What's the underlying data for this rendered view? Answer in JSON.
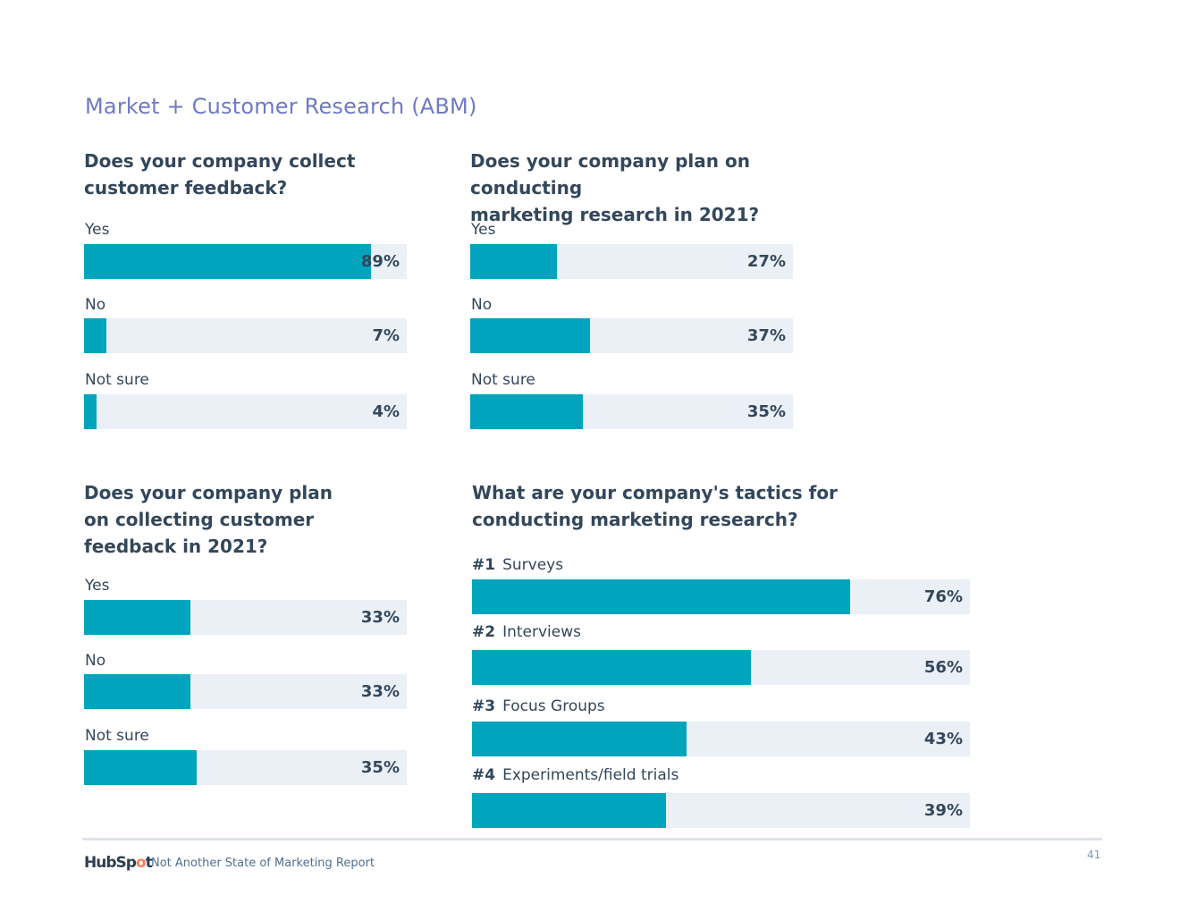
{
  "page": {
    "title": "Market + Customer Research (ABM)",
    "number": "41"
  },
  "footer": {
    "logo": {
      "text_a": "HubSp",
      "text_b": "o",
      "text_c": "t"
    },
    "report_name": "Not Another State of Marketing Report"
  },
  "colors": {
    "fill": "#00a4bd",
    "track": "#eaf0f6",
    "title": "#6f79c4",
    "text": "#33475b"
  },
  "chart_data": [
    {
      "type": "bar",
      "title": "Does your company collect customer feedback?",
      "title_lines": [
        "Does your company collect",
        "customer feedback?"
      ],
      "categories": [
        "Yes",
        "No",
        "Not sure"
      ],
      "values": [
        89,
        7,
        4
      ],
      "labels": [
        "89%",
        "7%",
        "4%"
      ],
      "ylim": [
        0,
        100
      ]
    },
    {
      "type": "bar",
      "title": "Does your company plan on conducting marketing research in 2021?",
      "title_lines": [
        "Does your company plan on conducting",
        "marketing research in 2021?"
      ],
      "categories": [
        "Yes",
        "No",
        "Not sure"
      ],
      "values": [
        27,
        37,
        35
      ],
      "labels": [
        "27%",
        "37%",
        "35%"
      ],
      "ylim": [
        0,
        100
      ]
    },
    {
      "type": "bar",
      "title": "Does your company plan on collecting customer feedback in 2021?",
      "title_lines": [
        "Does your company plan",
        "on collecting customer",
        "feedback in 2021?"
      ],
      "categories": [
        "Yes",
        "No",
        "Not sure"
      ],
      "values": [
        33,
        33,
        35
      ],
      "labels": [
        "33%",
        "33%",
        "35%"
      ],
      "ylim": [
        0,
        100
      ]
    },
    {
      "type": "bar",
      "title": "What are your company's tactics for conducting marketing research?",
      "title_lines": [
        "What are your company's tactics for",
        "conducting marketing research?"
      ],
      "ranks": [
        "#1",
        "#2",
        "#3",
        "#4"
      ],
      "categories": [
        "Surveys",
        "Interviews",
        "Focus Groups",
        "Experiments/field trials"
      ],
      "values": [
        76,
        56,
        43,
        39
      ],
      "labels": [
        "76%",
        "56%",
        "43%",
        "39%"
      ],
      "ylim": [
        0,
        100
      ]
    }
  ]
}
